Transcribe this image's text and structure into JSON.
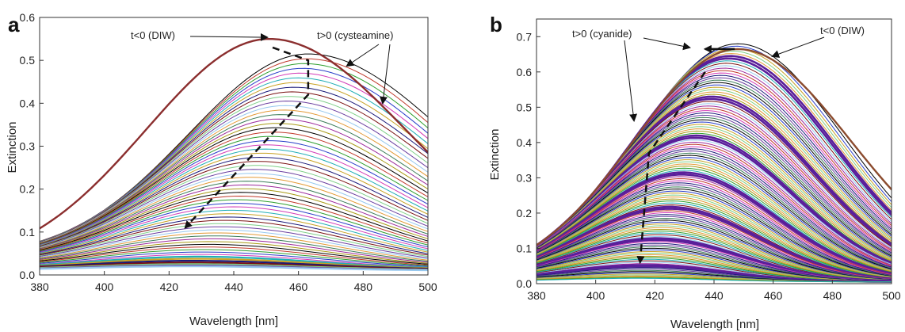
{
  "chart_data": [
    {
      "panel": "a",
      "type": "line",
      "xlabel": "Wavelength [nm]",
      "ylabel": "Extinction",
      "xlim": [
        380,
        500
      ],
      "ylim": [
        0,
        0.6
      ],
      "xticks": [
        380,
        400,
        420,
        440,
        460,
        480,
        500
      ],
      "yticks": [
        0.0,
        0.1,
        0.2,
        0.3,
        0.4,
        0.5,
        0.6
      ],
      "xtick_labels": [
        "380",
        "400",
        "420",
        "440",
        "460",
        "480",
        "500"
      ],
      "ytick_labels": [
        "0.0",
        "0.1",
        "0.2",
        "0.3",
        "0.4",
        "0.5",
        "0.6"
      ],
      "grid": false,
      "series_summary": {
        "count": 60,
        "initial_peak": {
          "x": 451,
          "y": 0.55
        },
        "first_shifted_peak": {
          "x": 463,
          "y": 0.495
        },
        "final_peak": {
          "x": 425,
          "y": 0.02
        },
        "trend": "peak red-shifts then decreases and blue-shifts to about 425 nm"
      },
      "annotations": [
        {
          "text": "t<0 (DIW)",
          "points_to": {
            "x": 451,
            "y": 0.55
          }
        },
        {
          "text": "t>0 (cysteamine)",
          "points_to": {
            "x": 468,
            "y": 0.5
          }
        }
      ],
      "arrow_path": [
        [
          452,
          0.53
        ],
        [
          463,
          0.5
        ],
        [
          463,
          0.42
        ],
        [
          425,
          0.11
        ]
      ]
    },
    {
      "panel": "b",
      "type": "line",
      "xlabel": "Wavelength [nm]",
      "ylabel": "Extinction",
      "xlim": [
        380,
        500
      ],
      "ylim": [
        0,
        0.75
      ],
      "xticks": [
        380,
        400,
        420,
        440,
        460,
        480,
        500
      ],
      "yticks": [
        0.0,
        0.1,
        0.2,
        0.3,
        0.4,
        0.5,
        0.6,
        0.7
      ],
      "xtick_labels": [
        "380",
        "400",
        "420",
        "440",
        "460",
        "480",
        "500"
      ],
      "ytick_labels": [
        "0.0",
        "0.1",
        "0.2",
        "0.3",
        "0.4",
        "0.5",
        "0.6",
        "0.7"
      ],
      "grid": false,
      "series_summary": {
        "count": 120,
        "initial_peak": {
          "x": 448,
          "y": 0.665
        },
        "final_peak": {
          "x": 414,
          "y": 0.02
        },
        "trend": "peak decreases and blue-shifts from about 448 nm to about 414 nm"
      },
      "annotations": [
        {
          "text": "t>0 (cyanide)",
          "points_to": {
            "x": 415,
            "y": 0.45
          }
        },
        {
          "text": "t<0 (DIW)",
          "points_to": {
            "x": 450,
            "y": 0.665
          }
        }
      ],
      "arrow_path": [
        [
          447,
          0.665
        ],
        [
          437,
          0.665
        ],
        [
          437,
          0.6
        ],
        [
          418,
          0.37
        ],
        [
          415,
          0.06
        ]
      ]
    }
  ],
  "palette": [
    "#000000",
    "#c0392b",
    "#2e9e2e",
    "#2a3fc9",
    "#d33cb8",
    "#20aeb6",
    "#c8a224",
    "#1b1b7a",
    "#7a1212",
    "#7fcf88",
    "#6b3fa0",
    "#97c8ee",
    "#e39a37",
    "#3d7d59",
    "#9c2a9c",
    "#a89a16"
  ]
}
